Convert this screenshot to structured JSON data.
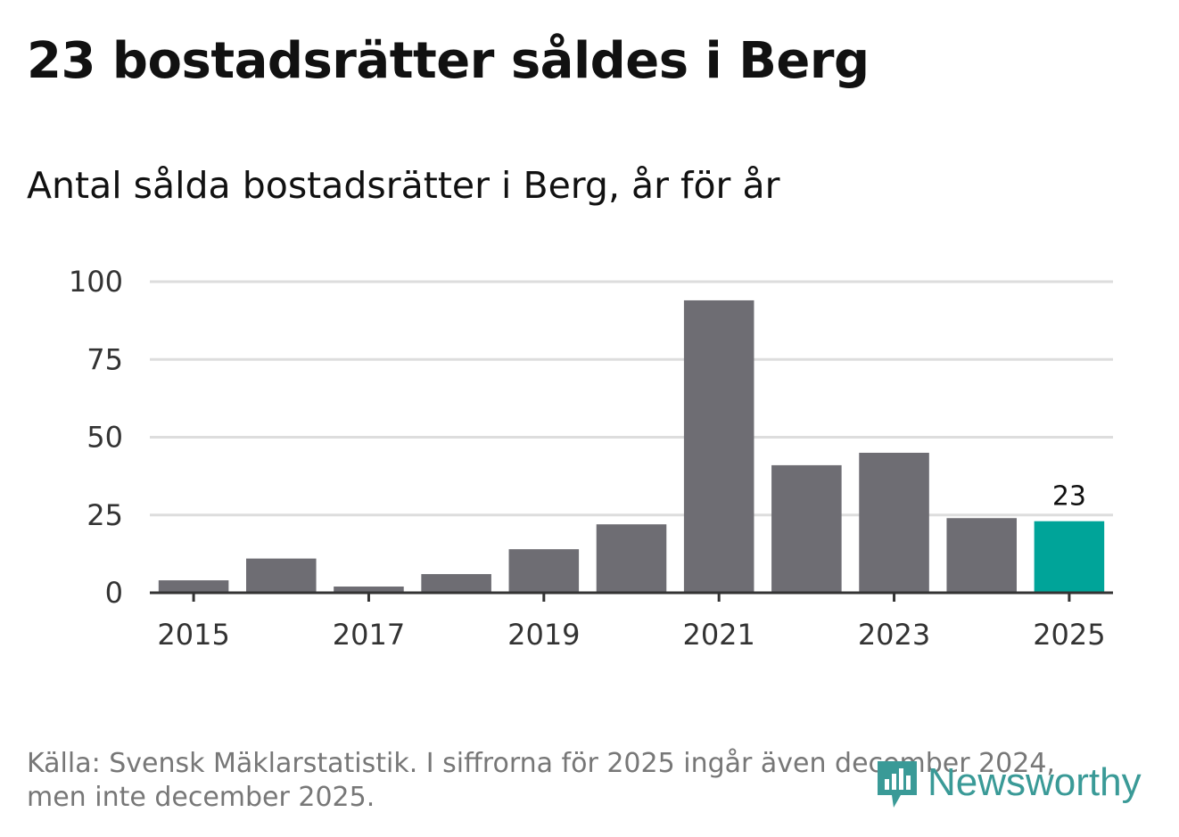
{
  "title": "23 bostadsrätter såldes i Berg",
  "chart_data": {
    "type": "bar",
    "title": "23 bostadsrätter såldes i Berg",
    "subtitle": "Antal sålda bostadsrätter i Berg, år för år",
    "categories": [
      "2015",
      "2016",
      "2017",
      "2018",
      "2019",
      "2020",
      "2021",
      "2022",
      "2023",
      "2024",
      "2025"
    ],
    "values": [
      4,
      11,
      2,
      6,
      14,
      22,
      94,
      41,
      45,
      24,
      23
    ],
    "x_tick_labels": [
      "2015",
      "2017",
      "2019",
      "2021",
      "2023",
      "2025"
    ],
    "y_ticks": [
      0,
      25,
      50,
      75,
      100
    ],
    "ylim": [
      0,
      100
    ],
    "xlabel": "",
    "ylabel": "",
    "grid": true,
    "highlight_index": 10,
    "highlight_label": "23",
    "colors": {
      "bar": "#6e6d73",
      "highlight": "#00a499",
      "grid": "#dddddd",
      "axis": "#333333"
    }
  },
  "source": "Källa: Svensk Mäklarstatistik. I siffrorna för 2025 ingår även december 2024, men inte december 2025.",
  "logo": {
    "text": "Newsworthy",
    "icon": "newsworthy-chart-bubble-icon",
    "color": "#3a9a97"
  }
}
